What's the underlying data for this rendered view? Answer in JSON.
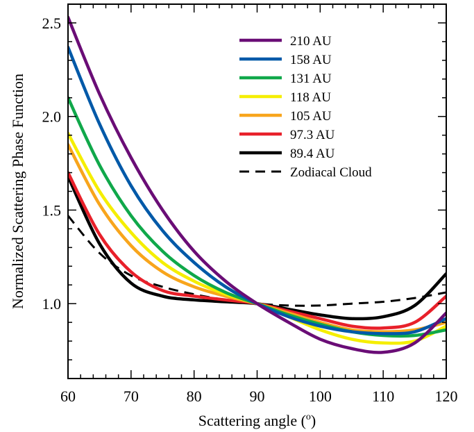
{
  "chart_data": {
    "type": "line",
    "xlabel": "Scattering angle (",
    "xlabel_sup": "o",
    "xlabel_tail": ")",
    "ylabel": "Normalized Scattering Phase Function",
    "xlim": [
      60,
      120
    ],
    "ylim": [
      0.6,
      2.6
    ],
    "xticks": [
      60,
      70,
      80,
      90,
      100,
      110,
      120
    ],
    "xtick_labels": [
      "60",
      "70",
      "80",
      "90",
      "100",
      "110",
      "120"
    ],
    "yticks": [
      1.0,
      1.5,
      2.0,
      2.5
    ],
    "ytick_labels": [
      "1.0",
      "1.5",
      "2.0",
      "2.5"
    ],
    "grid": false,
    "legend_position": "top-right",
    "x": [
      60,
      65,
      70,
      75,
      80,
      85,
      90,
      95,
      100,
      105,
      110,
      115,
      120
    ],
    "series": [
      {
        "name": "210 AU",
        "color": "#6a0d76",
        "dash": "solid",
        "values": [
          2.53,
          2.12,
          1.78,
          1.5,
          1.28,
          1.12,
          1.0,
          0.9,
          0.81,
          0.76,
          0.74,
          0.79,
          0.95
        ]
      },
      {
        "name": "158 AU",
        "color": "#0059a8",
        "dash": "solid",
        "values": [
          2.37,
          1.96,
          1.63,
          1.39,
          1.22,
          1.09,
          1.0,
          0.93,
          0.88,
          0.85,
          0.84,
          0.85,
          0.92
        ]
      },
      {
        "name": "131 AU",
        "color": "#10a84a",
        "dash": "solid",
        "values": [
          2.1,
          1.74,
          1.47,
          1.28,
          1.15,
          1.06,
          1.0,
          0.94,
          0.89,
          0.85,
          0.83,
          0.83,
          0.86
        ]
      },
      {
        "name": "118 AU",
        "color": "#f5ee00",
        "dash": "solid",
        "values": [
          1.91,
          1.6,
          1.38,
          1.22,
          1.12,
          1.05,
          1.0,
          0.93,
          0.86,
          0.81,
          0.79,
          0.8,
          0.88
        ]
      },
      {
        "name": "105 AU",
        "color": "#f8a51c",
        "dash": "solid",
        "values": [
          1.85,
          1.53,
          1.31,
          1.17,
          1.09,
          1.04,
          1.0,
          0.95,
          0.9,
          0.86,
          0.85,
          0.86,
          0.9
        ]
      },
      {
        "name": "97.3 AU",
        "color": "#e8202a",
        "dash": "solid",
        "values": [
          1.7,
          1.37,
          1.17,
          1.07,
          1.04,
          1.02,
          1.0,
          0.96,
          0.92,
          0.88,
          0.87,
          0.9,
          1.04
        ]
      },
      {
        "name": "89.4 AU",
        "color": "#000000",
        "dash": "solid",
        "values": [
          1.68,
          1.32,
          1.11,
          1.04,
          1.02,
          1.01,
          1.0,
          0.97,
          0.94,
          0.92,
          0.93,
          0.99,
          1.16
        ]
      },
      {
        "name": "Zodiacal Cloud",
        "color": "#000000",
        "dash": "dashed",
        "values": [
          1.47,
          1.27,
          1.15,
          1.09,
          1.05,
          1.02,
          1.0,
          0.99,
          0.99,
          1.0,
          1.01,
          1.03,
          1.06
        ]
      }
    ]
  }
}
